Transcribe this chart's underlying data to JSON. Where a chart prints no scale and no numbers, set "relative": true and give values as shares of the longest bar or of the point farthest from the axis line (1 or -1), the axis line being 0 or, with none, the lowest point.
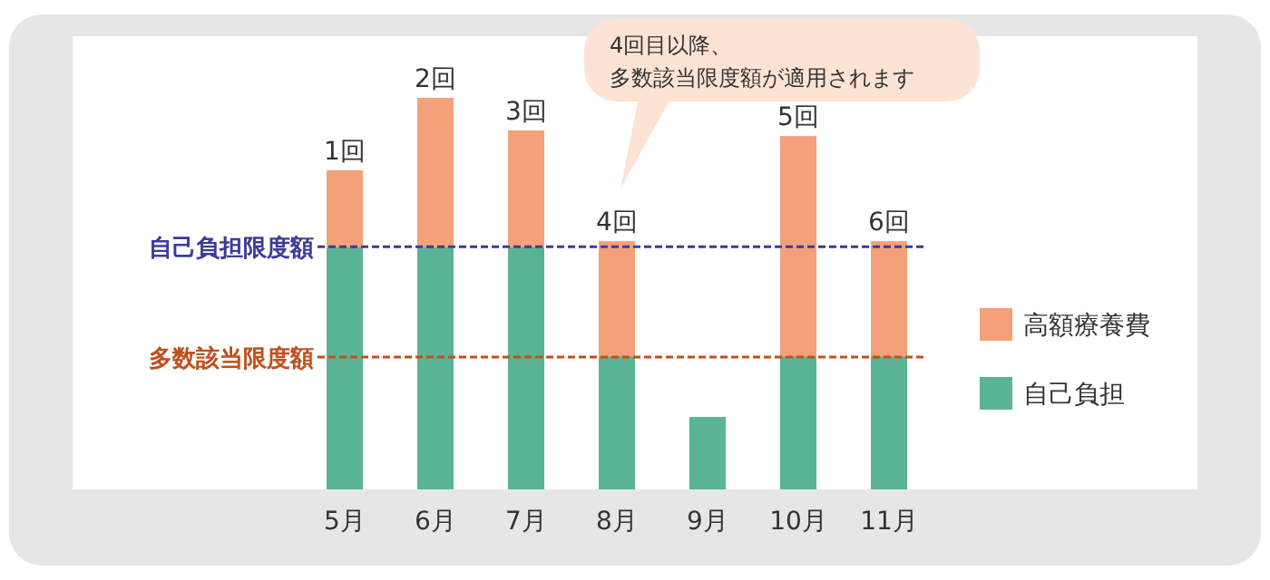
{
  "chart_data": {
    "type": "bar",
    "stacked": true,
    "relative": true,
    "legend": "right",
    "categories": [
      "5月",
      "6月",
      "7月",
      "8月",
      "9月",
      "10月",
      "11月"
    ],
    "series": [
      {
        "name": "自己負担",
        "color": "#5ab394",
        "values": [
          0.618,
          0.618,
          0.618,
          0.34,
          0.185,
          0.34,
          0.34
        ]
      },
      {
        "name": "高額療養費",
        "color": "#f4a07a",
        "values": [
          0.197,
          0.382,
          0.299,
          0.294,
          null,
          0.5625,
          0.294
        ]
      }
    ],
    "ref_lines": [
      {
        "axis": "y",
        "value": 0.62,
        "label": "自己負担限度額",
        "color": "#3c3c96",
        "line_style": "dashed"
      },
      {
        "axis": "y",
        "value": 0.338,
        "label": "多数該当限度額",
        "color": "#c0501e",
        "line_style": "dashed"
      }
    ],
    "annotations": [
      {
        "text": "1回",
        "x": "5月",
        "y": 0.815
      },
      {
        "text": "2回",
        "x": "6月",
        "y": 1.0
      },
      {
        "text": "3回",
        "x": "7月",
        "y": 0.917
      },
      {
        "text": "4回",
        "x": "8月",
        "y": 0.634
      },
      {
        "text": "5回",
        "x": "10月",
        "y": 0.9025
      },
      {
        "text": "6回",
        "x": "11月",
        "y": 0.634
      },
      "4回目以降、",
      "多数該当限度額が適用されます"
    ]
  }
}
